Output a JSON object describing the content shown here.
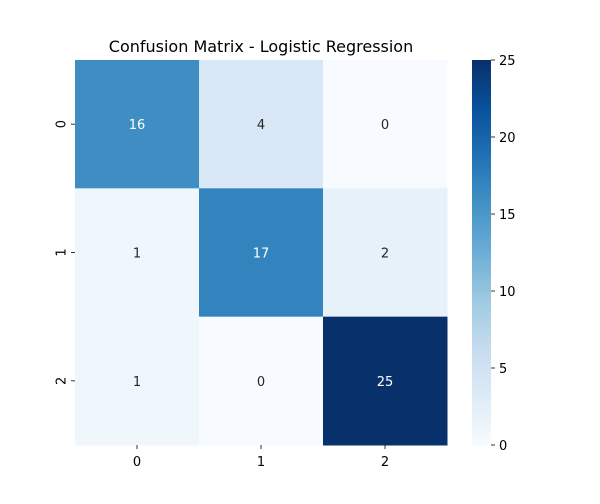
{
  "chart_data": {
    "type": "heatmap",
    "title": "Confusion Matrix - Logistic Regression",
    "xlabel": "",
    "ylabel": "",
    "x_categories": [
      "0",
      "1",
      "2"
    ],
    "y_categories": [
      "0",
      "1",
      "2"
    ],
    "values": [
      [
        16,
        4,
        0
      ],
      [
        1,
        17,
        2
      ],
      [
        1,
        0,
        25
      ]
    ],
    "colorscale": "Blues",
    "colorbar": {
      "range": [
        0,
        25
      ],
      "ticks": [
        "0",
        "5",
        "10",
        "15",
        "20",
        "25"
      ]
    },
    "annotations": true,
    "legend": "colorbar-right"
  },
  "colors": {
    "scale_low": "#f7fbff",
    "scale_high": "#08306b",
    "annotation_dark": "#262626",
    "annotation_light": "#ffffff",
    "axis": "#000000"
  }
}
